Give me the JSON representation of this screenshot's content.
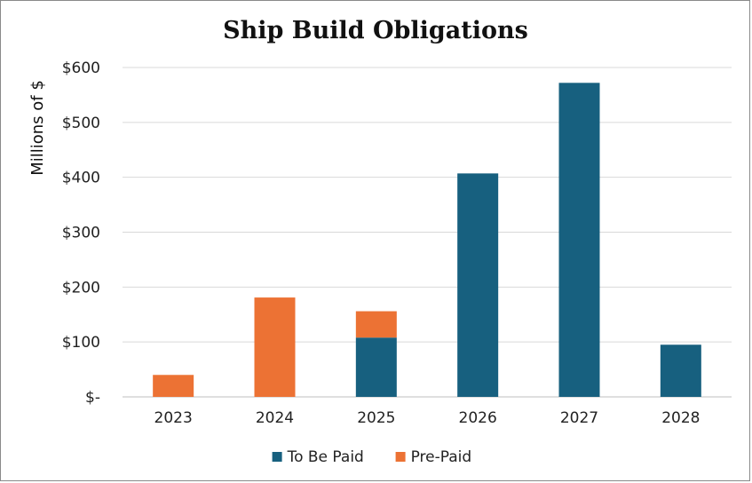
{
  "chart_data": {
    "type": "bar",
    "stacked": true,
    "title": "Ship Build Obligations",
    "ylabel": "Millions of $",
    "xlabel": "",
    "categories": [
      "2023",
      "2024",
      "2025",
      "2026",
      "2027",
      "2028"
    ],
    "series": [
      {
        "name": "To Be Paid",
        "color": "#17607f",
        "values": [
          0,
          0,
          108,
          407,
          572,
          95
        ]
      },
      {
        "name": "Pre-Paid",
        "color": "#ec7234",
        "values": [
          40,
          181,
          48,
          0,
          0,
          0
        ]
      }
    ],
    "ylim": [
      0,
      600
    ],
    "yticks": [
      0,
      100,
      200,
      300,
      400,
      500,
      600
    ],
    "ytick_labels": [
      "$-",
      "$100",
      "$200",
      "$300",
      "$400",
      "$500",
      "$600"
    ],
    "grid": true,
    "legend_position": "bottom"
  }
}
